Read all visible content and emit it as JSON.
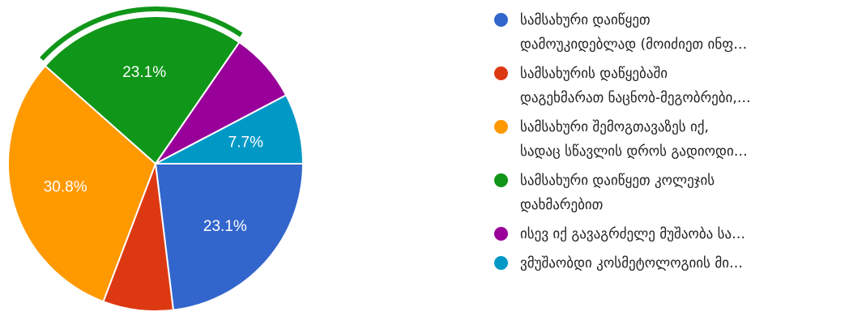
{
  "chart_data": {
    "type": "pie",
    "title": "",
    "legend_position": "right",
    "slices": [
      {
        "label_lines": [
          "სამსახური დაიწყეთ",
          "დამოუკიდებლად (მოიძიეთ ინფ…"
        ],
        "value": 23.1,
        "display_label": "23.1%",
        "color": "#3366cc"
      },
      {
        "label_lines": [
          "სამსახურის დაწყებაში",
          "დაგეხმარათ ნაცნობ-მეგობრები,…"
        ],
        "value": 7.7,
        "display_label": "",
        "color": "#dc3912"
      },
      {
        "label_lines": [
          "სამსახური შემოგთავაზეს იქ,",
          "სადაც სწავლის დროს გადიოდი…"
        ],
        "value": 30.8,
        "display_label": "30.8%",
        "color": "#ff9900"
      },
      {
        "label_lines": [
          "სამსახური დაიწყეთ კოლეჯის",
          "დახმარებით"
        ],
        "value": 23.1,
        "display_label": "23.1%",
        "color": "#109618",
        "highlighted": true
      },
      {
        "label_lines": [
          "ისევ იქ გავაგრძელე მუშაობა სა…"
        ],
        "value": 7.7,
        "display_label": "",
        "color": "#990099"
      },
      {
        "label_lines": [
          "ვმუშაობდი კოსმეტოლოგიის მი…"
        ],
        "value": 7.7,
        "display_label": "7.7%",
        "color": "#0099c6"
      }
    ]
  }
}
